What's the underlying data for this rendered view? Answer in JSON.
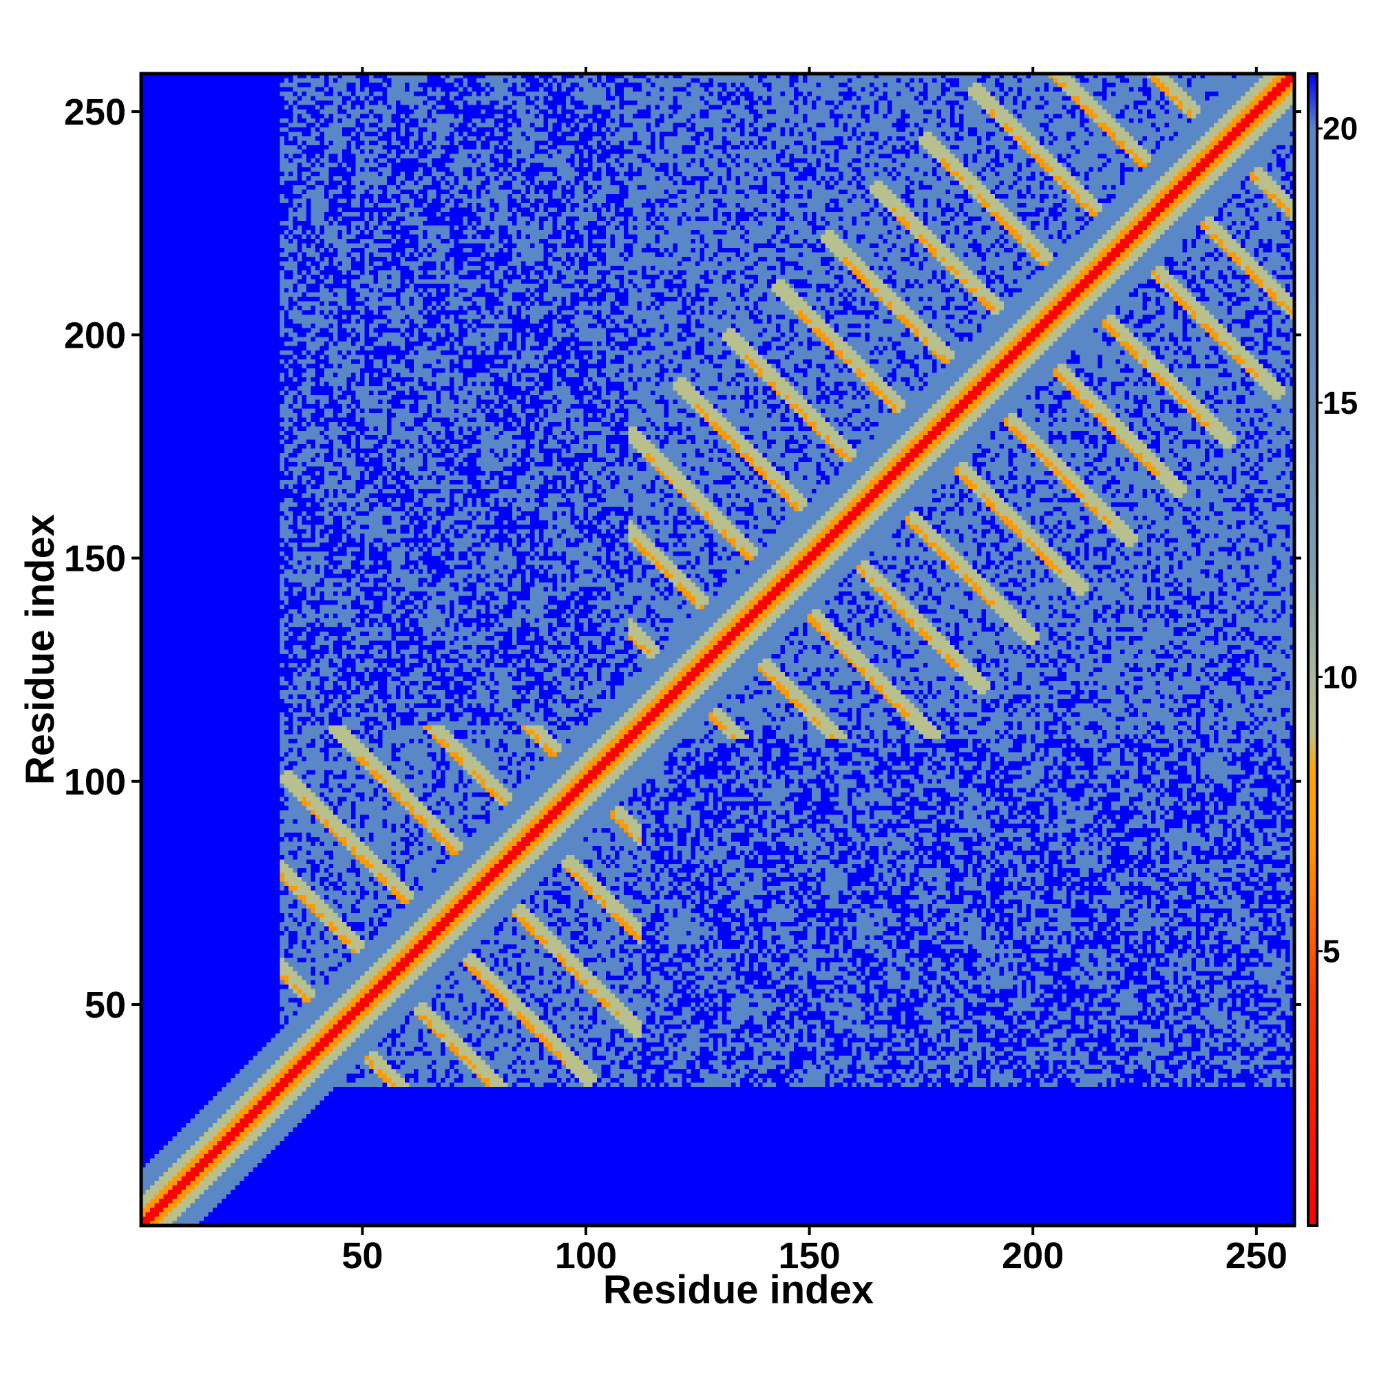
{
  "chart_data": {
    "type": "heatmap",
    "title": "",
    "xlabel": "Residue index",
    "ylabel": "Residue index",
    "xlim": [
      1,
      258
    ],
    "ylim": [
      1,
      258
    ],
    "x_ticks": [
      50,
      100,
      150,
      200,
      250
    ],
    "y_ticks": [
      50,
      100,
      150,
      200,
      250
    ],
    "colorbar": {
      "range": [
        0,
        21
      ],
      "ticks": [
        5,
        10,
        15,
        20
      ],
      "colors": [
        {
          "value": 0,
          "color": "#ff0000"
        },
        {
          "value": 4,
          "color": "#ff3300"
        },
        {
          "value": 7,
          "color": "#ff9900"
        },
        {
          "value": 8.3,
          "color": "#ffa500"
        },
        {
          "value": 9,
          "color": "#bfc08a"
        },
        {
          "value": 10,
          "color": "#a9b99a"
        },
        {
          "value": 12,
          "color": "#7c9fb0"
        },
        {
          "value": 15,
          "color": "#6a8fbd"
        },
        {
          "value": 18,
          "color": "#5b88c4"
        },
        {
          "value": 20,
          "color": "#5a87c5"
        },
        {
          "value": 21,
          "color": "#0000ff"
        }
      ]
    },
    "domains": [
      {
        "range": [
          1,
          110
        ],
        "label": ""
      },
      {
        "range": [
          110,
          258
        ],
        "label": ""
      }
    ],
    "colors": {
      "background": "#0000ff",
      "diagonal": "#ff0000",
      "contact": "#ff9900",
      "near": "#b8c08e",
      "mid": "#5a87c5"
    }
  }
}
